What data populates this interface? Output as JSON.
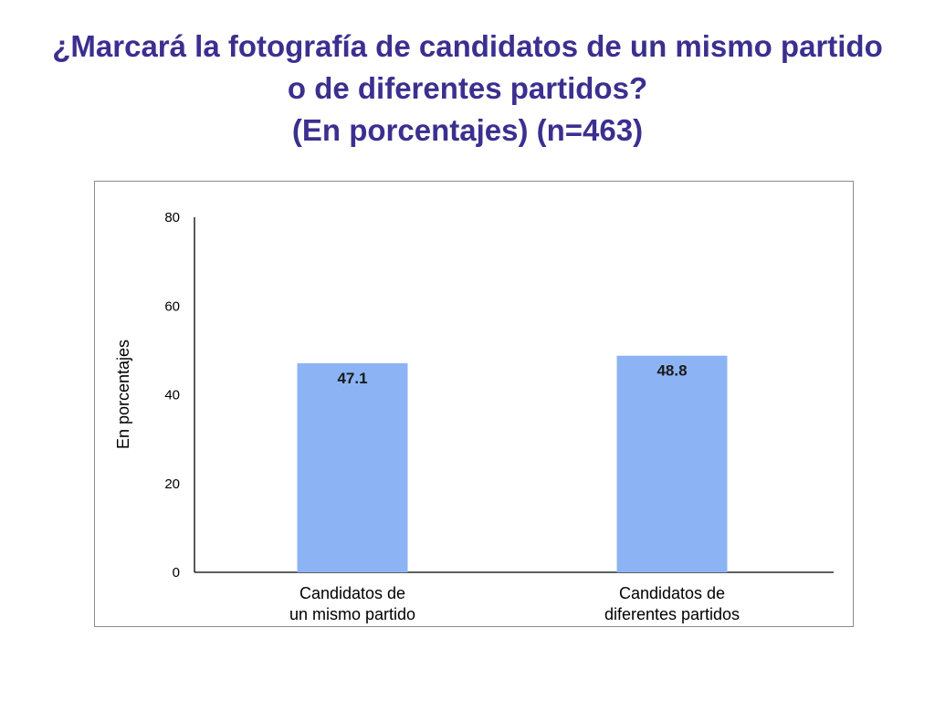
{
  "slide": {
    "title_lines": [
      "¿Marcará la fotografía de candidatos de un mismo partido",
      "o de diferentes partidos?",
      "(En porcentajes) (n=463)"
    ]
  },
  "chart_data": {
    "type": "bar",
    "title": "",
    "xlabel": "",
    "ylabel": "En porcentajes",
    "ylim": [
      0,
      80
    ],
    "yticks": [
      0,
      20,
      40,
      60,
      80
    ],
    "categories": [
      [
        "Candidatos de",
        "un mismo partido"
      ],
      [
        "Candidatos de",
        "diferentes partidos"
      ]
    ],
    "values": [
      47.1,
      48.8
    ],
    "data_labels": [
      "47.1",
      "48.8"
    ],
    "bar_color": "#8cb4f5",
    "grid": false,
    "legend": "none"
  }
}
